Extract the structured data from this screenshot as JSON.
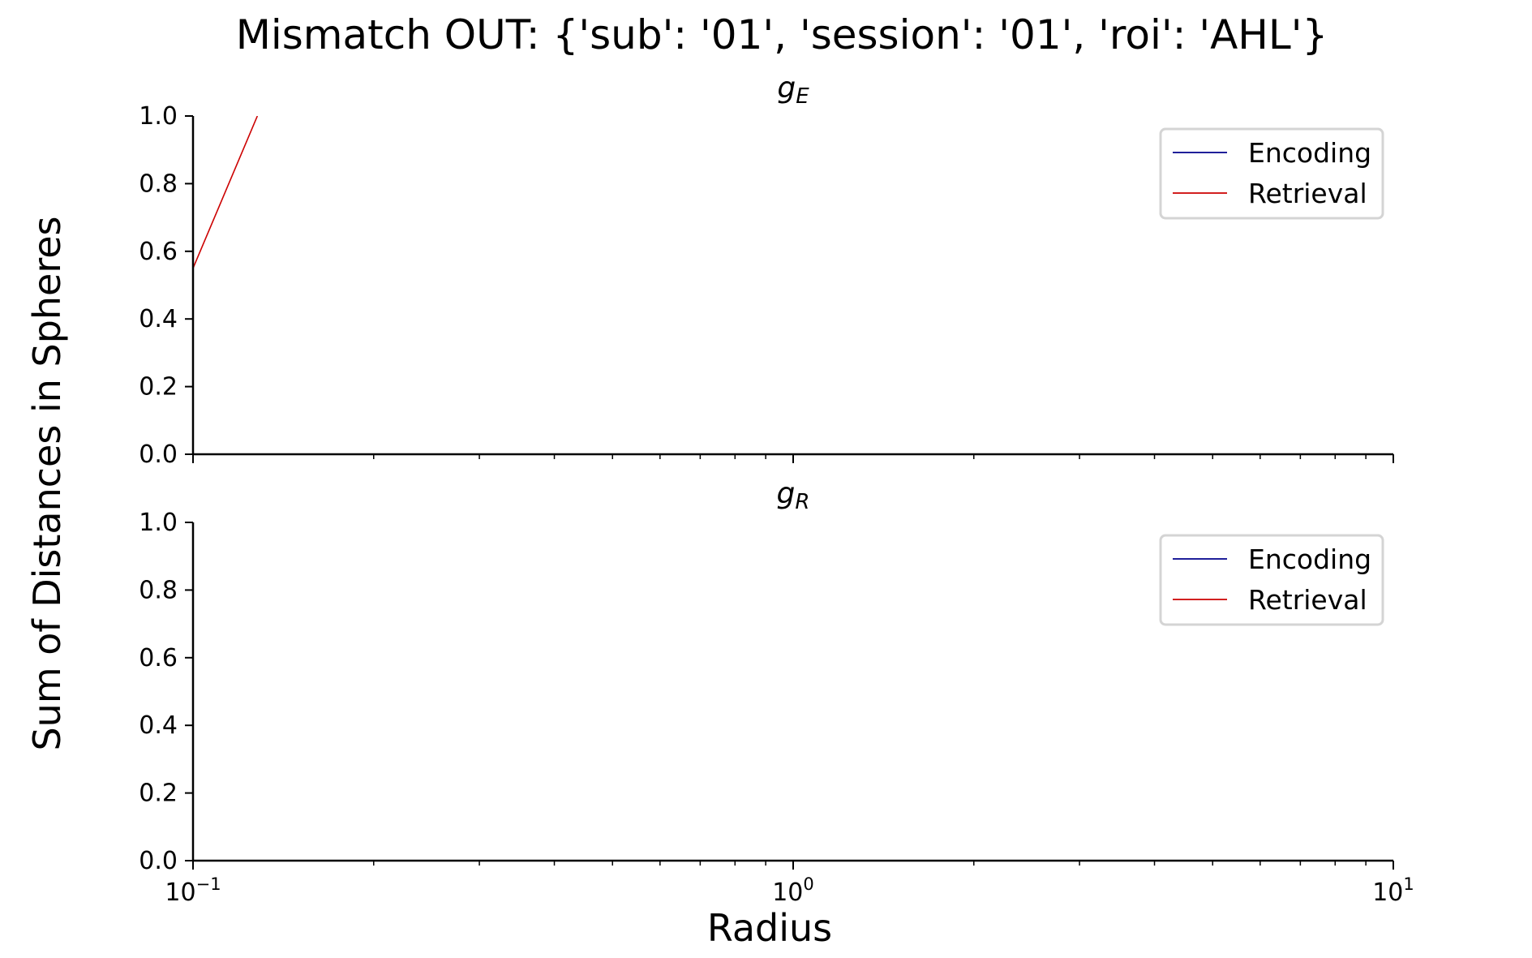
{
  "chart_data": {
    "title": "Mismatch OUT: {'sub': '01', 'session': '01', 'roi': 'AHL'}",
    "xlabel": "Radius",
    "ylabel": "Sum of Distances in Spheres",
    "xscale": "log",
    "xlim": [
      0.1,
      10
    ],
    "ylim": [
      0,
      1
    ],
    "x_major_ticks": [
      {
        "value": 0.1,
        "base": "10",
        "exp": "−1"
      },
      {
        "value": 1,
        "base": "10",
        "exp": "0"
      },
      {
        "value": 10,
        "base": "10",
        "exp": "1"
      }
    ],
    "x_minor_ticks": [
      0.2,
      0.3,
      0.4,
      0.5,
      0.6,
      0.7,
      0.8,
      0.9,
      2,
      3,
      4,
      5,
      6,
      7,
      8,
      9
    ],
    "y_ticks": [
      "0.0",
      "0.2",
      "0.4",
      "0.6",
      "0.8",
      "1.0"
    ],
    "sharex": true,
    "grid": false,
    "legend_location": "upper right",
    "subplots": [
      {
        "type": "line",
        "subtitle_base": "g",
        "subtitle_sub": "E",
        "show_xticklabels": false,
        "legend": [
          {
            "label": "Encoding",
            "color": "#00008b"
          },
          {
            "label": "Retrieval",
            "color": "#cc0000"
          }
        ],
        "series": [
          {
            "name": "Encoding",
            "color": "#00008b",
            "x": [],
            "y": []
          },
          {
            "name": "Retrieval",
            "color": "#cc0000",
            "x": [
              0.1,
              0.128
            ],
            "y": [
              0.55,
              1.0
            ]
          }
        ]
      },
      {
        "type": "line",
        "subtitle_base": "g",
        "subtitle_sub": "R",
        "show_xticklabels": true,
        "legend": [
          {
            "label": "Encoding",
            "color": "#00008b"
          },
          {
            "label": "Retrieval",
            "color": "#cc0000"
          }
        ],
        "series": [
          {
            "name": "Encoding",
            "color": "#00008b",
            "x": [],
            "y": []
          },
          {
            "name": "Retrieval",
            "color": "#cc0000",
            "x": [],
            "y": []
          }
        ]
      }
    ]
  }
}
